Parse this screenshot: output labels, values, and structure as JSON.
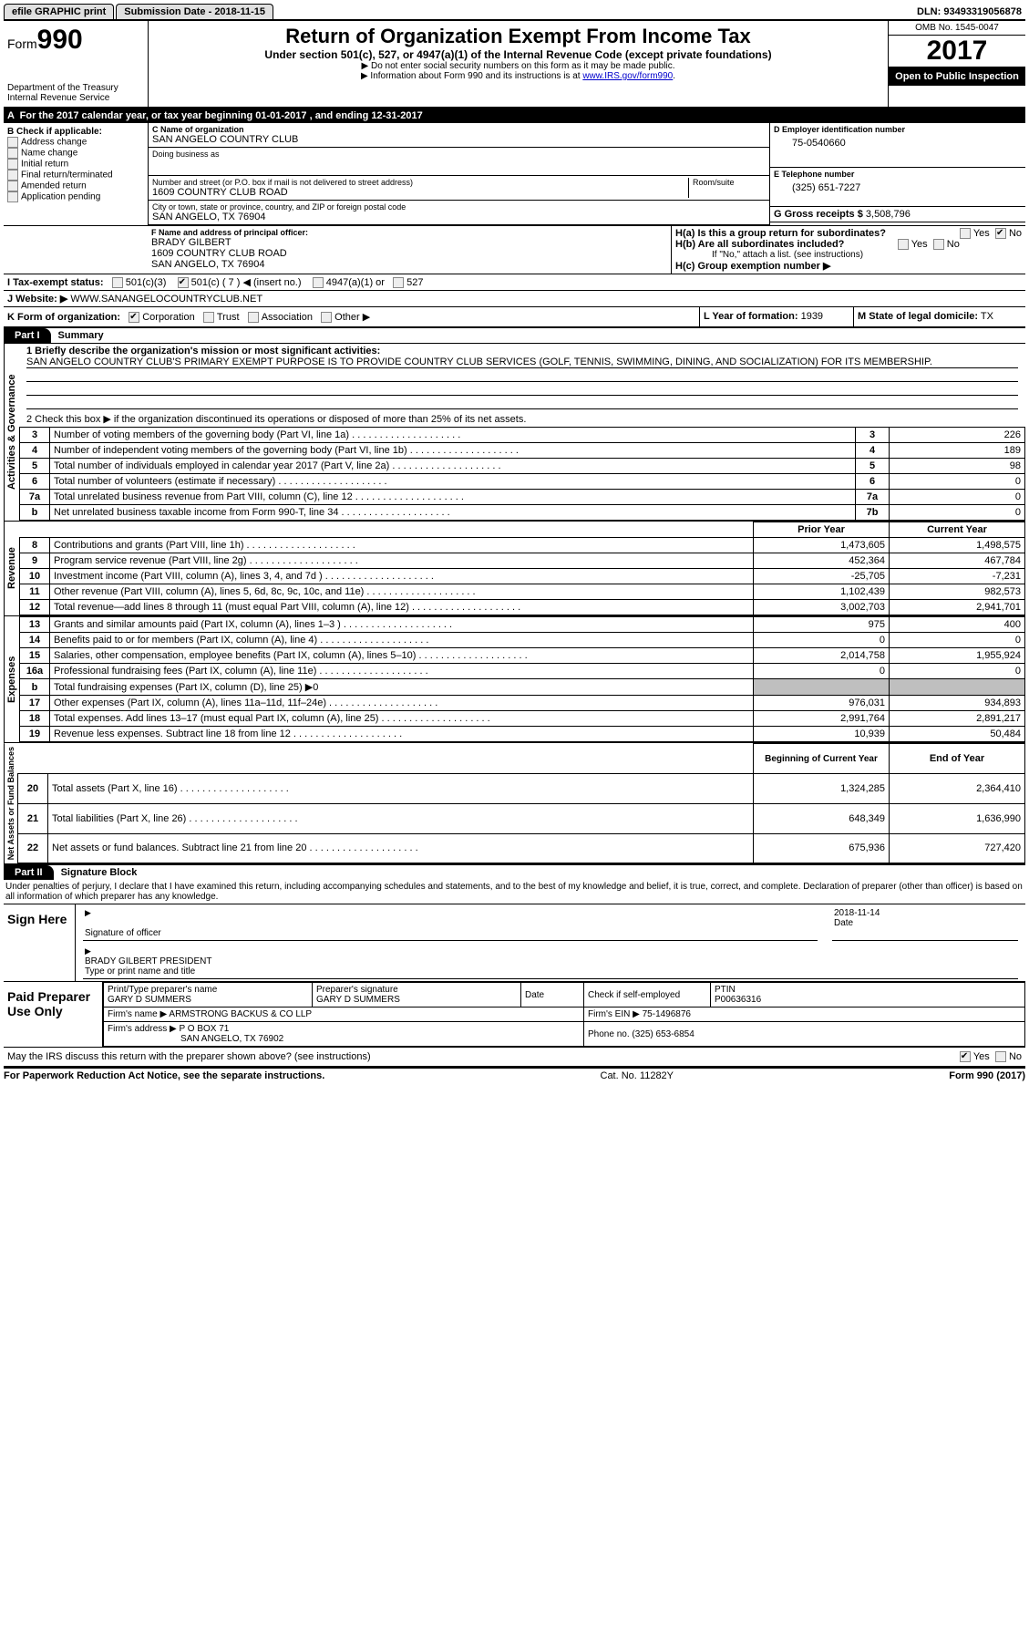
{
  "topbar": {
    "efile": "efile GRAPHIC print",
    "submission": "Submission Date - 2018-11-15",
    "dln": "DLN: 93493319056878"
  },
  "header": {
    "form_prefix": "Form",
    "form_num": "990",
    "dept": "Department of the Treasury",
    "irs": "Internal Revenue Service",
    "title": "Return of Organization Exempt From Income Tax",
    "subtitle": "Under section 501(c), 527, or 4947(a)(1) of the Internal Revenue Code (except private foundations)",
    "note1": "▶ Do not enter social security numbers on this form as it may be made public.",
    "note2_pre": "▶ Information about Form 990 and its instructions is at ",
    "note2_link": "www.IRS.gov/form990",
    "omb": "OMB No. 1545-0047",
    "year": "2017",
    "open": "Open to Public Inspection"
  },
  "sectionA": "For the 2017 calendar year, or tax year beginning 01-01-2017    , and ending 12-31-2017",
  "B": {
    "title": "B Check if applicable:",
    "items": [
      "Address change",
      "Name change",
      "Initial return",
      "Final return/terminated",
      "Amended return",
      "Application pending"
    ]
  },
  "C": {
    "label": "C Name of organization",
    "name": "SAN ANGELO COUNTRY CLUB",
    "dba_label": "Doing business as",
    "street_label": "Number and street (or P.O. box if mail is not delivered to street address)",
    "room_label": "Room/suite",
    "street": "1609 COUNTRY CLUB ROAD",
    "city_label": "City or town, state or province, country, and ZIP or foreign postal code",
    "city": "SAN ANGELO, TX  76904"
  },
  "D": {
    "label": "D Employer identification number",
    "ein": "75-0540660"
  },
  "E": {
    "label": "E Telephone number",
    "phone": "(325) 651-7227"
  },
  "G": {
    "label": "G Gross receipts $",
    "val": "3,508,796"
  },
  "F": {
    "label": "F Name and address of principal officer:",
    "name": "BRADY GILBERT",
    "addr1": "1609 COUNTRY CLUB ROAD",
    "addr2": "SAN ANGELO, TX  76904"
  },
  "H": {
    "a": "H(a)  Is this a group return for subordinates?",
    "b": "H(b)  Are all subordinates included?",
    "b_note": "If \"No,\" attach a list. (see instructions)",
    "c": "H(c)  Group exemption number ▶",
    "yes": "Yes",
    "no": "No"
  },
  "I": {
    "label": "I  Tax-exempt status:",
    "c3": "501(c)(3)",
    "c": "501(c) ( 7 ) ◀ (insert no.)",
    "a1": "4947(a)(1) or",
    "five27": "527"
  },
  "J": {
    "label": "J  Website: ▶",
    "url": "WWW.SANANGELOCOUNTRYCLUB.NET"
  },
  "K": {
    "label": "K Form of organization:",
    "opts": [
      "Corporation",
      "Trust",
      "Association",
      "Other ▶"
    ]
  },
  "L": {
    "label": "L Year of formation:",
    "val": "1939"
  },
  "M": {
    "label": "M State of legal domicile:",
    "val": "TX"
  },
  "part1": {
    "hdr": "Part I",
    "title": "Summary"
  },
  "mission": {
    "label": "1   Briefly describe the organization's mission or most significant activities:",
    "text": "SAN ANGELO COUNTRY CLUB'S PRIMARY EXEMPT PURPOSE IS TO PROVIDE COUNTRY CLUB SERVICES (GOLF, TENNIS, SWIMMING, DINING, AND SOCIALIZATION) FOR ITS MEMBERSHIP."
  },
  "line2": "2   Check this box ▶      if the organization discontinued its operations or disposed of more than 25% of its net assets.",
  "gov_lines": [
    {
      "n": "3",
      "d": "Number of voting members of the governing body (Part VI, line 1a)",
      "box": "3",
      "v": "226"
    },
    {
      "n": "4",
      "d": "Number of independent voting members of the governing body (Part VI, line 1b)",
      "box": "4",
      "v": "189"
    },
    {
      "n": "5",
      "d": "Total number of individuals employed in calendar year 2017 (Part V, line 2a)",
      "box": "5",
      "v": "98"
    },
    {
      "n": "6",
      "d": "Total number of volunteers (estimate if necessary)",
      "box": "6",
      "v": "0"
    },
    {
      "n": "7a",
      "d": "Total unrelated business revenue from Part VIII, column (C), line 12",
      "box": "7a",
      "v": "0"
    },
    {
      "n": "b",
      "d": "Net unrelated business taxable income from Form 990-T, line 34",
      "box": "7b",
      "v": "0"
    }
  ],
  "col_hdr": {
    "prior": "Prior Year",
    "current": "Current Year"
  },
  "rev_lines": [
    {
      "n": "8",
      "d": "Contributions and grants (Part VIII, line 1h)",
      "p": "1,473,605",
      "c": "1,498,575"
    },
    {
      "n": "9",
      "d": "Program service revenue (Part VIII, line 2g)",
      "p": "452,364",
      "c": "467,784"
    },
    {
      "n": "10",
      "d": "Investment income (Part VIII, column (A), lines 3, 4, and 7d )",
      "p": "-25,705",
      "c": "-7,231"
    },
    {
      "n": "11",
      "d": "Other revenue (Part VIII, column (A), lines 5, 6d, 8c, 9c, 10c, and 11e)",
      "p": "1,102,439",
      "c": "982,573"
    },
    {
      "n": "12",
      "d": "Total revenue—add lines 8 through 11 (must equal Part VIII, column (A), line 12)",
      "p": "3,002,703",
      "c": "2,941,701"
    }
  ],
  "exp_lines": [
    {
      "n": "13",
      "d": "Grants and similar amounts paid (Part IX, column (A), lines 1–3 )",
      "p": "975",
      "c": "400"
    },
    {
      "n": "14",
      "d": "Benefits paid to or for members (Part IX, column (A), line 4)",
      "p": "0",
      "c": "0"
    },
    {
      "n": "15",
      "d": "Salaries, other compensation, employee benefits (Part IX, column (A), lines 5–10)",
      "p": "2,014,758",
      "c": "1,955,924"
    },
    {
      "n": "16a",
      "d": "Professional fundraising fees (Part IX, column (A), line 11e)",
      "p": "0",
      "c": "0"
    },
    {
      "n": "b",
      "d": "Total fundraising expenses (Part IX, column (D), line 25) ▶0",
      "p": "",
      "c": "",
      "grey": true
    },
    {
      "n": "17",
      "d": "Other expenses (Part IX, column (A), lines 11a–11d, 11f–24e)",
      "p": "976,031",
      "c": "934,893"
    },
    {
      "n": "18",
      "d": "Total expenses. Add lines 13–17 (must equal Part IX, column (A), line 25)",
      "p": "2,991,764",
      "c": "2,891,217"
    },
    {
      "n": "19",
      "d": "Revenue less expenses. Subtract line 18 from line 12",
      "p": "10,939",
      "c": "50,484"
    }
  ],
  "na_hdr": {
    "begin": "Beginning of Current Year",
    "end": "End of Year"
  },
  "na_lines": [
    {
      "n": "20",
      "d": "Total assets (Part X, line 16)",
      "p": "1,324,285",
      "c": "2,364,410"
    },
    {
      "n": "21",
      "d": "Total liabilities (Part X, line 26)",
      "p": "648,349",
      "c": "1,636,990"
    },
    {
      "n": "22",
      "d": "Net assets or fund balances. Subtract line 21 from line 20",
      "p": "675,936",
      "c": "727,420"
    }
  ],
  "part2": {
    "hdr": "Part II",
    "title": "Signature Block"
  },
  "penalty": "Under penalties of perjury, I declare that I have examined this return, including accompanying schedules and statements, and to the best of my knowledge and belief, it is true, correct, and complete. Declaration of preparer (other than officer) is based on all information of which preparer has any knowledge.",
  "sign": {
    "here": "Sign Here",
    "sig_label": "Signature of officer",
    "date_label": "Date",
    "date": "2018-11-14",
    "name": "BRADY GILBERT PRESIDENT",
    "name_label": "Type or print name and title"
  },
  "prep": {
    "label": "Paid Preparer Use Only",
    "name_label": "Print/Type preparer's name",
    "name": "GARY D SUMMERS",
    "sig_label": "Preparer's signature",
    "sig": "GARY D SUMMERS",
    "date_label": "Date",
    "check_label": "Check       if self-employed",
    "ptin_label": "PTIN",
    "ptin": "P00636316",
    "firm_label": "Firm's name     ▶",
    "firm": "ARMSTRONG BACKUS & CO LLP",
    "ein_label": "Firm's EIN ▶",
    "ein": "75-1496876",
    "addr_label": "Firm's address ▶",
    "addr": "P O BOX 71",
    "addr2": "SAN ANGELO, TX  76902",
    "phone_label": "Phone no.",
    "phone": "(325) 653-6854"
  },
  "discuss": "May the IRS discuss this return with the preparer shown above? (see instructions)",
  "footer": {
    "l": "For Paperwork Reduction Act Notice, see the separate instructions.",
    "m": "Cat. No. 11282Y",
    "r": "Form 990 (2017)"
  },
  "vlabels": {
    "gov": "Activities & Governance",
    "rev": "Revenue",
    "exp": "Expenses",
    "na": "Net Assets or Fund Balances"
  }
}
